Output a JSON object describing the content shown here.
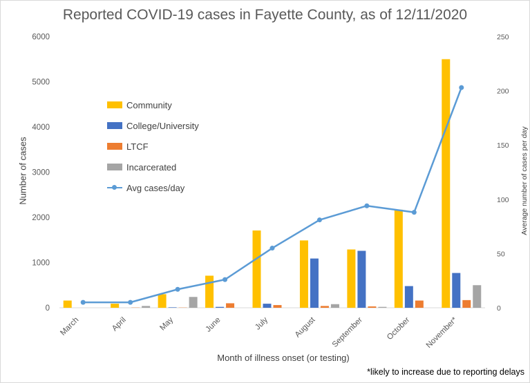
{
  "chart_data": {
    "type": "bar",
    "title": "Reported COVID-19 cases in Fayette County, as of 12/11/2020",
    "xlabel": "Month  of illness onset (or testing)",
    "ylabel": "Number  of cases",
    "y2label": "Average number of cases per day",
    "ylim": [
      0,
      6000
    ],
    "y2lim": [
      0,
      250
    ],
    "yticks": [
      "0",
      "1000",
      "2000",
      "3000",
      "4000",
      "5000",
      "6000"
    ],
    "y2ticks": [
      "0",
      "50",
      "100",
      "150",
      "200",
      "250"
    ],
    "categories": [
      "March",
      "April",
      "May",
      "June",
      "July",
      "August",
      "September",
      "October",
      "November*"
    ],
    "series": [
      {
        "name": "Community",
        "color": "#ffc000",
        "values": [
          160,
          90,
          300,
          710,
          1710,
          1490,
          1290,
          2170,
          5500
        ]
      },
      {
        "name": "College/University",
        "color": "#4472c4",
        "values": [
          0,
          0,
          10,
          20,
          90,
          1090,
          1260,
          480,
          770
        ]
      },
      {
        "name": "LTCF",
        "color": "#ed7d31",
        "values": [
          0,
          5,
          5,
          100,
          60,
          40,
          30,
          160,
          170
        ]
      },
      {
        "name": "Incarcerated",
        "color": "#a5a5a5",
        "values": [
          0,
          40,
          240,
          0,
          0,
          80,
          20,
          0,
          500
        ]
      }
    ],
    "line": {
      "name": "Avg cases/day",
      "color": "#5b9bd5",
      "values": [
        5,
        5,
        17,
        26,
        55,
        81,
        94,
        88,
        203
      ]
    },
    "legend_position": "left-inside",
    "grid": false,
    "footnote": "*likely to increase due to reporting delays"
  }
}
